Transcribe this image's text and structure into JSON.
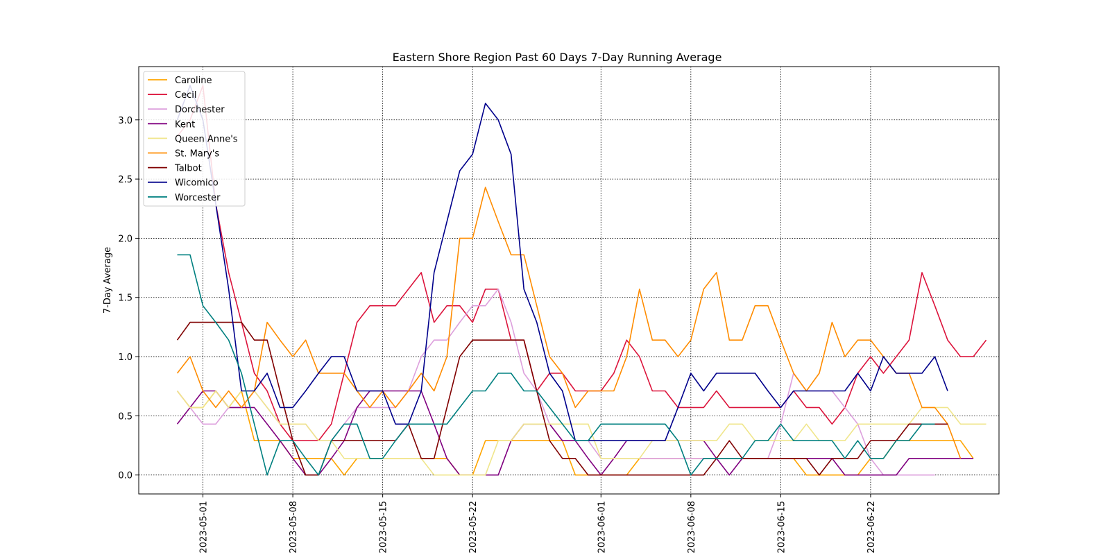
{
  "chart_data": {
    "type": "line",
    "title": "Eastern Shore Region Past 60 Days 7-Day Running Average",
    "ylabel": "7-Day Average",
    "xlabel": "",
    "x_start": "2023-04-29",
    "x_end": "2023-06-27",
    "xlim": [
      "2023-04-26",
      "2023-07-02"
    ],
    "ylim": [
      -0.16,
      3.45
    ],
    "yticks": [
      0.0,
      0.5,
      1.0,
      1.5,
      2.0,
      2.5,
      3.0
    ],
    "ytick_labels": [
      "0.0",
      "0.5",
      "1.0",
      "1.5",
      "2.0",
      "2.5",
      "3.0"
    ],
    "xticks": [
      "2023-05-01",
      "2023-05-08",
      "2023-05-15",
      "2023-05-22",
      "2023-06-01",
      "2023-06-08",
      "2023-06-15",
      "2023-06-22"
    ],
    "grid": true,
    "legend_position": "top-left",
    "series": [
      {
        "name": "Caroline",
        "color": "#ffa500",
        "values": [
          0.71,
          0.57,
          0.57,
          0.71,
          0.57,
          0.71,
          0.29,
          0.29,
          0.29,
          0.14,
          0.14,
          0.14,
          0.14,
          0.0,
          0.14,
          0.14,
          0.14,
          0.14,
          0.14,
          0.14,
          0.14,
          0.14,
          0.0,
          0.0,
          0.29,
          0.29,
          0.29,
          0.29,
          0.29,
          0.29,
          0.29,
          0.0,
          0.0,
          0.0,
          0.0,
          0.0,
          0.14,
          0.14,
          0.14,
          0.14,
          0.14,
          0.14,
          0.14,
          0.14,
          0.14,
          0.14,
          0.14,
          0.14,
          0.14,
          0.0,
          0.0,
          0.0,
          0.0,
          0.0,
          0.14,
          0.14,
          0.29,
          0.29,
          0.29,
          0.29,
          0.29,
          0.29,
          0.14
        ]
      },
      {
        "name": "Cecil",
        "color": "#dc143c",
        "values": [
          2.86,
          3.0,
          3.29,
          2.29,
          1.71,
          1.29,
          0.86,
          0.71,
          0.43,
          0.29,
          0.29,
          0.29,
          0.43,
          0.86,
          1.29,
          1.43,
          1.43,
          1.43,
          1.57,
          1.71,
          1.29,
          1.43,
          1.43,
          1.29,
          1.57,
          1.57,
          1.14,
          1.14,
          0.71,
          0.86,
          0.86,
          0.71,
          0.71,
          0.71,
          0.86,
          1.14,
          1.0,
          0.71,
          0.71,
          0.57,
          0.57,
          0.57,
          0.71,
          0.57,
          0.57,
          0.57,
          0.57,
          0.57,
          0.71,
          0.57,
          0.57,
          0.43,
          0.57,
          0.86,
          1.0,
          0.86,
          1.0,
          1.14,
          1.71,
          1.43,
          1.14,
          1.0,
          1.0,
          1.14
        ]
      },
      {
        "name": "Dorchester",
        "color": "#dda0dd",
        "values": [
          0.71,
          0.57,
          0.43,
          0.43,
          0.57,
          0.57,
          0.71,
          0.57,
          0.43,
          0.43,
          0.43,
          0.29,
          0.29,
          0.43,
          0.57,
          0.57,
          0.57,
          0.57,
          0.71,
          1.0,
          1.14,
          1.14,
          1.29,
          1.43,
          1.43,
          1.57,
          1.29,
          0.86,
          0.71,
          0.43,
          0.29,
          0.29,
          0.29,
          0.14,
          0.14,
          0.14,
          0.14,
          0.14,
          0.14,
          0.14,
          0.14,
          0.14,
          0.14,
          0.14,
          0.14,
          0.14,
          0.14,
          0.43,
          0.86,
          0.71,
          0.71,
          0.71,
          0.57,
          0.43,
          0.14,
          0.0,
          0.0,
          0.0,
          0.0,
          0.0
        ]
      },
      {
        "name": "Kent",
        "color": "#800080",
        "values": [
          0.43,
          0.57,
          0.71,
          0.71,
          0.57,
          0.57,
          0.57,
          0.43,
          0.29,
          0.14,
          0.0,
          0.0,
          0.14,
          0.29,
          0.57,
          0.71,
          0.71,
          0.71,
          0.71,
          0.71,
          0.43,
          0.14,
          0.0,
          0.0,
          0.0,
          0.0,
          0.29,
          0.43,
          0.43,
          0.43,
          0.29,
          0.29,
          0.14,
          0.0,
          0.14,
          0.29,
          0.29,
          0.29,
          0.29,
          0.29,
          0.29,
          0.29,
          0.14,
          0.0,
          0.14,
          0.14,
          0.14,
          0.14,
          0.14,
          0.14,
          0.14,
          0.14,
          0.0,
          0.0,
          0.0,
          0.0,
          0.0,
          0.14,
          0.14,
          0.14,
          0.14,
          0.14,
          0.14
        ]
      },
      {
        "name": "Queen Anne's",
        "color": "#f0e68c",
        "values": [
          0.71,
          0.57,
          0.57,
          0.71,
          0.57,
          0.71,
          0.71,
          0.57,
          0.43,
          0.43,
          0.43,
          0.29,
          0.29,
          0.14,
          0.14,
          0.14,
          0.14,
          0.14,
          0.14,
          0.14,
          0.0,
          0.0,
          0.0,
          0.0,
          0.0,
          0.29,
          0.29,
          0.43,
          0.43,
          0.43,
          0.43,
          0.43,
          0.43,
          0.14,
          0.14,
          0.14,
          0.14,
          0.29,
          0.29,
          0.29,
          0.29,
          0.29,
          0.29,
          0.43,
          0.43,
          0.29,
          0.29,
          0.29,
          0.29,
          0.43,
          0.29,
          0.29,
          0.29,
          0.43,
          0.43,
          0.43,
          0.43,
          0.43,
          0.57,
          0.57,
          0.57,
          0.43,
          0.43,
          0.43
        ]
      },
      {
        "name": "St. Mary's",
        "color": "#ff8c00",
        "values": [
          0.86,
          1.0,
          0.71,
          0.57,
          0.71,
          0.57,
          0.71,
          1.29,
          1.14,
          1.0,
          1.14,
          0.86,
          0.86,
          0.86,
          0.71,
          0.57,
          0.71,
          0.57,
          0.71,
          0.86,
          0.71,
          1.0,
          2.0,
          2.0,
          2.43,
          2.14,
          1.86,
          1.86,
          1.43,
          1.0,
          0.86,
          0.57,
          0.71,
          0.71,
          0.71,
          1.0,
          1.57,
          1.14,
          1.14,
          1.0,
          1.14,
          1.57,
          1.71,
          1.14,
          1.14,
          1.43,
          1.43,
          1.14,
          0.86,
          0.71,
          0.86,
          1.29,
          1.0,
          1.14,
          1.14,
          1.0,
          0.86,
          0.86,
          0.57,
          0.57,
          0.43,
          0.14
        ]
      },
      {
        "name": "Talbot",
        "color": "#800000",
        "values": [
          1.14,
          1.29,
          1.29,
          1.29,
          1.29,
          1.29,
          1.14,
          1.14,
          0.71,
          0.29,
          0.0,
          0.0,
          0.29,
          0.29,
          0.29,
          0.29,
          0.29,
          0.29,
          0.43,
          0.14,
          0.14,
          0.57,
          1.0,
          1.14,
          1.14,
          1.14,
          1.14,
          1.14,
          0.71,
          0.29,
          0.14,
          0.14,
          0.0,
          0.0,
          0.0,
          0.0,
          0.0,
          0.0,
          0.0,
          0.0,
          0.0,
          0.0,
          0.14,
          0.29,
          0.14,
          0.14,
          0.14,
          0.14,
          0.14,
          0.14,
          0.0,
          0.14,
          0.14,
          0.14,
          0.29,
          0.29,
          0.29,
          0.43,
          0.43,
          0.43,
          0.43
        ]
      },
      {
        "name": "Wicomico",
        "color": "#00008b",
        "values": [
          3.0,
          3.29,
          3.0,
          2.29,
          1.57,
          0.71,
          0.71,
          0.86,
          0.57,
          0.57,
          0.71,
          0.86,
          1.0,
          1.0,
          0.71,
          0.71,
          0.71,
          0.43,
          0.43,
          0.71,
          1.71,
          2.14,
          2.57,
          2.71,
          3.14,
          3.0,
          2.71,
          1.57,
          1.29,
          0.86,
          0.71,
          0.29,
          0.29,
          0.29,
          0.29,
          0.29,
          0.29,
          0.29,
          0.29,
          0.57,
          0.86,
          0.71,
          0.86,
          0.86,
          0.86,
          0.86,
          0.71,
          0.57,
          0.71,
          0.71,
          0.71,
          0.71,
          0.71,
          0.86,
          0.71,
          1.0,
          0.86,
          0.86,
          0.86,
          1.0,
          0.71
        ]
      },
      {
        "name": "Worcester",
        "color": "#008080",
        "values": [
          1.86,
          1.86,
          1.43,
          1.29,
          1.14,
          0.86,
          0.43,
          0.0,
          0.29,
          0.29,
          0.14,
          0.0,
          0.29,
          0.43,
          0.43,
          0.14,
          0.14,
          0.29,
          0.43,
          0.43,
          0.43,
          0.43,
          0.57,
          0.71,
          0.71,
          0.86,
          0.86,
          0.71,
          0.71,
          0.57,
          0.43,
          0.29,
          0.29,
          0.43,
          0.43,
          0.43,
          0.43,
          0.43,
          0.43,
          0.29,
          0.0,
          0.14,
          0.14,
          0.14,
          0.14,
          0.29,
          0.29,
          0.43,
          0.29,
          0.29,
          0.29,
          0.29,
          0.14,
          0.29,
          0.14,
          0.14,
          0.29,
          0.29,
          0.43,
          0.43
        ]
      }
    ]
  }
}
